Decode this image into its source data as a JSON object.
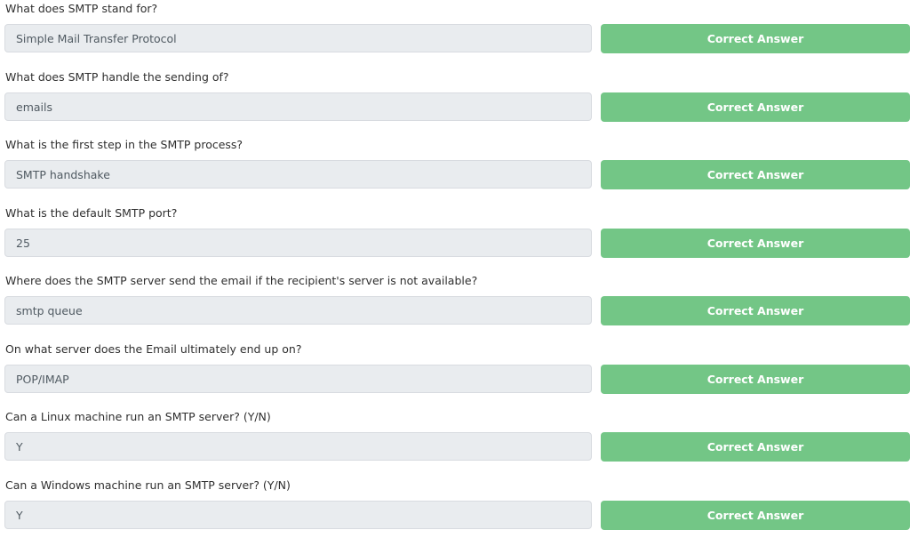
{
  "questions": [
    {
      "question": "What does SMTP stand for?",
      "answer": "Simple Mail Transfer Protocol",
      "button_label": "Correct Answer"
    },
    {
      "question": "What does SMTP handle the sending of?",
      "answer": "emails",
      "button_label": "Correct Answer"
    },
    {
      "question": "What is the first step in the SMTP process?",
      "answer": "SMTP handshake",
      "button_label": "Correct Answer"
    },
    {
      "question": "What is the default SMTP port?",
      "answer": "25",
      "button_label": "Correct Answer"
    },
    {
      "question": "Where does the SMTP server send the email if the recipient's server is not available?",
      "answer": "smtp queue",
      "button_label": "Correct Answer"
    },
    {
      "question": "On what server does the Email ultimately end up on?",
      "answer": "POP/IMAP",
      "button_label": "Correct Answer"
    },
    {
      "question": "Can a Linux machine run an SMTP server? (Y/N)",
      "answer": "Y",
      "button_label": "Correct Answer"
    },
    {
      "question": "Can a Windows machine run an SMTP server? (Y/N)",
      "answer": "Y",
      "button_label": "Correct Answer"
    }
  ],
  "colors": {
    "correct_button": "#73c686",
    "answer_field_bg": "#e9ecef",
    "question_text": "#2f2f2f"
  }
}
